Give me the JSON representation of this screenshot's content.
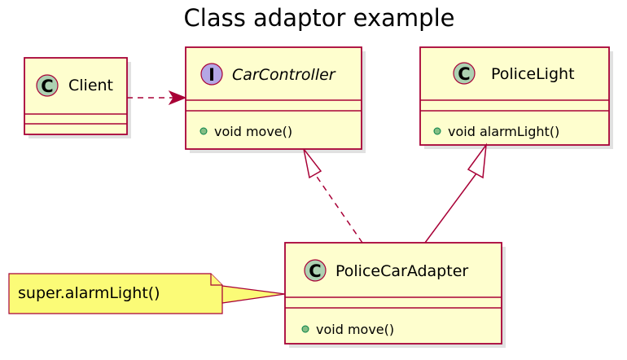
{
  "title": "Class adaptor example",
  "classes": {
    "client": {
      "name": "Client",
      "stereotype": "C",
      "members": []
    },
    "car_controller": {
      "name": "CarController",
      "stereotype": "I",
      "members": [
        "void move()"
      ]
    },
    "police_light": {
      "name": "PoliceLight",
      "stereotype": "C",
      "members": [
        "void alarmLight()"
      ]
    },
    "police_car_adapter": {
      "name": "PoliceCarAdapter",
      "stereotype": "C",
      "members": [
        "void move()"
      ]
    }
  },
  "note": {
    "text": "super.alarmLight()"
  },
  "relations": [
    {
      "from": "Client",
      "to": "CarController",
      "kind": "dependency"
    },
    {
      "from": "PoliceCarAdapter",
      "to": "CarController",
      "kind": "realization"
    },
    {
      "from": "PoliceCarAdapter",
      "to": "PoliceLight",
      "kind": "inheritance"
    }
  ],
  "colors": {
    "class_fill": "#FEFECE",
    "border": "#A80036",
    "class_badge": "#ADD1B2",
    "interface_badge": "#B4A7E5",
    "note_fill": "#FBFB77",
    "public_dot": "#84BE84"
  }
}
